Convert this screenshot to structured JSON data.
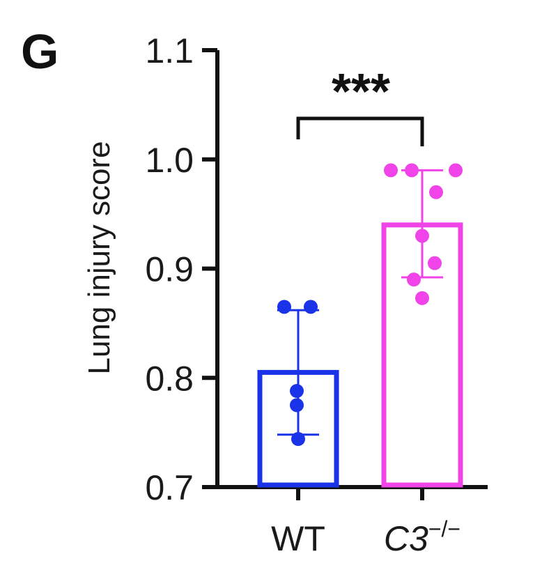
{
  "panel_letter": "G",
  "chart_data": {
    "type": "bar",
    "title": "",
    "ylabel": "Lung injury score",
    "xlabel": "",
    "ylim": [
      0.7,
      1.1
    ],
    "yticks": [
      "0.7",
      "0.8",
      "0.9",
      "1.0",
      "1.1"
    ],
    "grid": false,
    "categories": [
      {
        "label_main": "WT",
        "label_sup": ""
      },
      {
        "label_main": "C3",
        "label_sup": "−/−"
      }
    ],
    "values": [
      0.805,
      0.94
    ],
    "error_lower": [
      0.748,
      0.892
    ],
    "error_upper": [
      0.862,
      0.99
    ],
    "points": [
      [
        0.865,
        0.865,
        0.788,
        0.775,
        0.744
      ],
      [
        0.99,
        0.99,
        0.99,
        0.97,
        0.93,
        0.905,
        0.89,
        0.873
      ]
    ],
    "colors": [
      "#1a33e8",
      "#f044e8"
    ],
    "significance": "***"
  }
}
